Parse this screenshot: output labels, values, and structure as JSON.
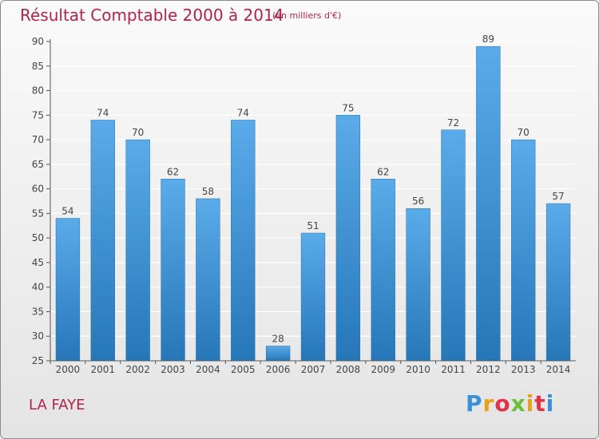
{
  "header": {
    "title": "Résultat Comptable 2000 à 2014",
    "subtitle": "(en milliers d'€)"
  },
  "footer": {
    "location": "LA FAYE",
    "logo": "Proxiti"
  },
  "colors": {
    "title": "#b0234d",
    "bar_top": "#5aabe9",
    "bar_bottom": "#2677b8",
    "grid": "#ffffff"
  },
  "chart_data": {
    "type": "bar",
    "title": "Résultat Comptable 2000 à 2014",
    "subtitle": "(en milliers d'€)",
    "xlabel": "",
    "ylabel": "",
    "categories": [
      "2000",
      "2001",
      "2002",
      "2003",
      "2004",
      "2005",
      "2006",
      "2007",
      "2008",
      "2009",
      "2010",
      "2011",
      "2012",
      "2013",
      "2014"
    ],
    "values": [
      54,
      74,
      70,
      62,
      58,
      74,
      28,
      51,
      75,
      62,
      56,
      72,
      89,
      70,
      57
    ],
    "ylim": [
      25,
      90
    ],
    "yticks": [
      25,
      30,
      35,
      40,
      45,
      50,
      55,
      60,
      65,
      70,
      75,
      80,
      85,
      90
    ],
    "grid": true,
    "data_labels": true
  }
}
